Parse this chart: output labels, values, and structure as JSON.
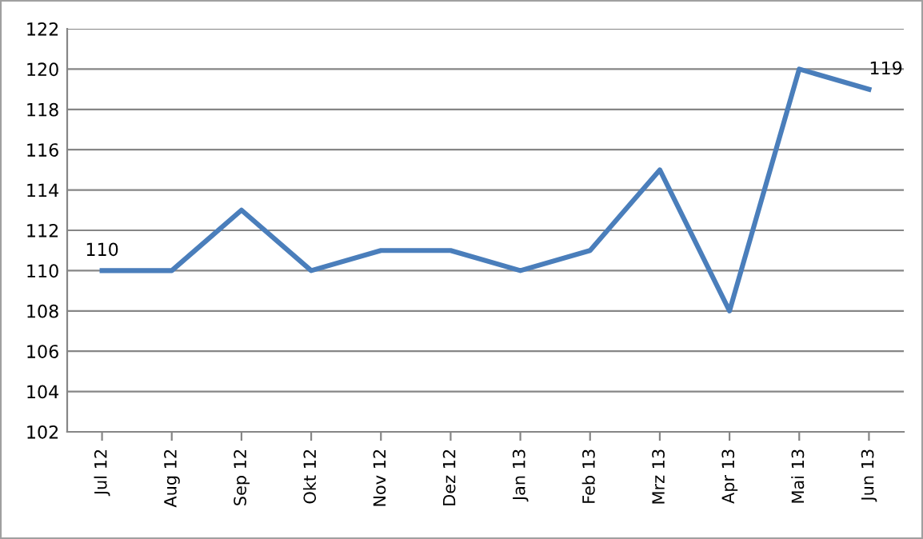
{
  "chart_data": {
    "type": "line",
    "categories": [
      "Jul 12",
      "Aug 12",
      "Sep 12",
      "Okt 12",
      "Nov 12",
      "Dez 12",
      "Jan 13",
      "Feb 13",
      "Mrz 13",
      "Apr 13",
      "Mai 13",
      "Jun 13"
    ],
    "series": [
      {
        "color": "#4a7ebb",
        "values": [
          110,
          110,
          113,
          110,
          111,
          111,
          110,
          111,
          115,
          108,
          120,
          119
        ],
        "value_labels": [
          "110",
          null,
          null,
          null,
          null,
          null,
          null,
          null,
          null,
          null,
          null,
          "119"
        ]
      }
    ],
    "ylim": [
      102,
      122
    ],
    "yticks": [
      102,
      104,
      106,
      108,
      110,
      112,
      114,
      116,
      118,
      120,
      122
    ],
    "grid": "y",
    "legend": false,
    "marker": "none",
    "line_style": "solid"
  }
}
